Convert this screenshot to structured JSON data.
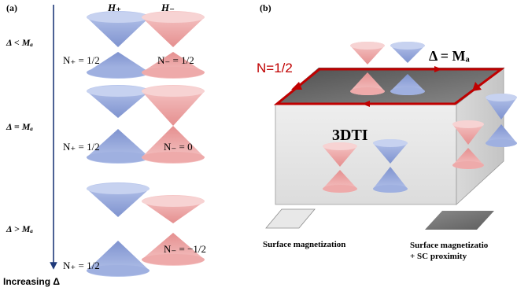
{
  "panel_a": {
    "label": "(a)",
    "col_plus": "H₊",
    "col_minus": "H₋",
    "arrow_label": "Increasing Δ",
    "rows": [
      {
        "condition": "Δ < Mₐ",
        "n_plus": "N₊ = 1/2",
        "n_minus": "N₋ = 1/2"
      },
      {
        "condition": "Δ = Mₐ",
        "n_plus": "N₊ = 1/2",
        "n_minus": "N₋ = 0"
      },
      {
        "condition": "Δ > Mₐ",
        "n_plus": "N₊ = 1/2",
        "n_minus": "N₋ = −1/2"
      }
    ]
  },
  "panel_b": {
    "label": "(b)",
    "n_label": "N=1/2",
    "delta_label": "Δ = Mₐ",
    "body_label": "3DTI",
    "legend": [
      {
        "text": "Surface magnetization"
      },
      {
        "text": "Surface magnetizatio",
        "text2": "+ SC proximity"
      }
    ]
  },
  "colors": {
    "blue": "#8ea3d8",
    "red": "#ec9e9e",
    "edge_red": "#c00000",
    "arrow_blue": "#1f3a7a",
    "top_gray": "#6b6b6b"
  }
}
